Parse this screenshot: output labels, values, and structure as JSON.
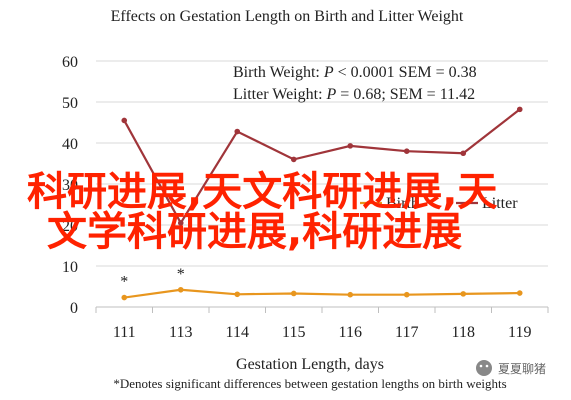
{
  "chart_data": {
    "type": "line",
    "title": "Effects on Gestation Length on Birth and Litter Weight",
    "xlabel": "Gestation Length, days",
    "ylabel": "",
    "categories": [
      "111",
      "113",
      "114",
      "115",
      "116",
      "117",
      "118",
      "119"
    ],
    "ylim": [
      0,
      60
    ],
    "yticks": [
      0,
      10,
      20,
      30,
      40,
      50,
      60
    ],
    "grid": true,
    "legend_position": "right-center",
    "series": [
      {
        "name": "Birth",
        "color": "#E8961E",
        "values": [
          2.3,
          4.2,
          3.1,
          3.3,
          3.0,
          3.0,
          3.2,
          3.4
        ]
      },
      {
        "name": "Litter",
        "color": "#A0353A",
        "values": [
          45.5,
          20.5,
          42.8,
          36.0,
          39.3,
          38.0,
          37.5,
          48.2
        ]
      }
    ],
    "stats": [
      {
        "label": "Birth Weight: ",
        "p_symbol": "P",
        "rest": " < 0.0001 SEM = 0.38"
      },
      {
        "label": "Litter Weight: ",
        "p_symbol": "P",
        "rest": " = 0.68; SEM = 11.42"
      }
    ],
    "asterisks": [
      {
        "series": "Birth",
        "index": 0,
        "text": "*"
      },
      {
        "series": "Birth",
        "index": 1,
        "text": "*"
      }
    ],
    "footnote": "*Denotes significant differences between gestation lengths on birth weights"
  },
  "overlay": {
    "line1": "科研进展,天文科研进展,天",
    "line2": "文学科研进展,科研进展",
    "color": "#ff2200"
  },
  "watermark": {
    "text": "夏夏聊猪"
  }
}
